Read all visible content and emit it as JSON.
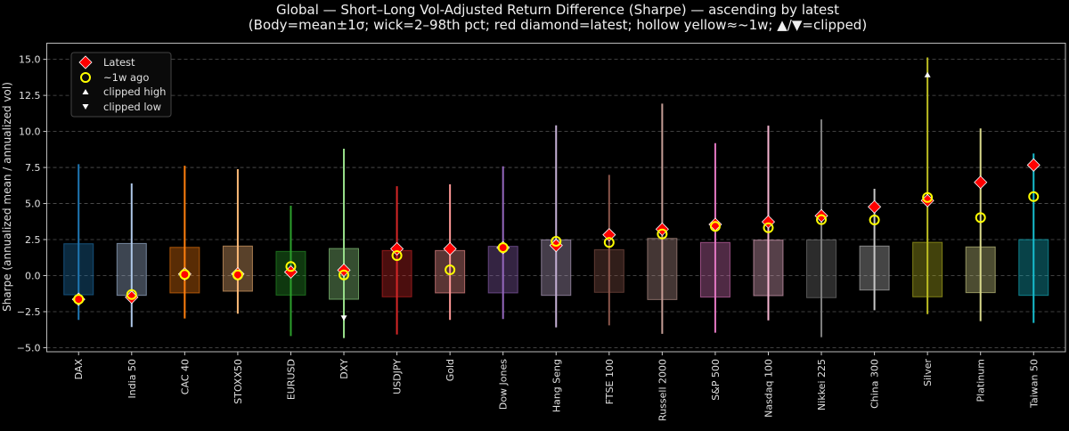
{
  "chart_data": {
    "type": "candlestick-range",
    "title_line1": "Global — Short–Long Vol-Adjusted Return Difference (Sharpe) — ascending by latest",
    "title_line2": "(Body=mean±1σ; wick=2–98th pct; red diamond=latest; hollow yellow≈~1w; ▲/▼=clipped)",
    "xlabel": "",
    "ylabel": "Sharpe (annualized mean / annualized vol)",
    "ylim": [
      -5.28,
      16.12
    ],
    "yticks": [
      -5.0,
      -2.5,
      0.0,
      2.5,
      5.0,
      7.5,
      10.0,
      12.5,
      15.0
    ],
    "ytick_labels": [
      "−5.0",
      "−2.5",
      "0.0",
      "2.5",
      "5.0",
      "7.5",
      "10.0",
      "12.5",
      "15.0"
    ],
    "grid": "horizontal dashed",
    "legend_placement": "top-left",
    "legend": [
      {
        "label": "Latest",
        "marker": "red-diamond"
      },
      {
        "label": "~1w ago",
        "marker": "hollow-yellow-circle"
      },
      {
        "label": "clipped high",
        "marker": "white-triangle-up"
      },
      {
        "label": "clipped low",
        "marker": "white-triangle-down"
      }
    ],
    "categories": [
      "DAX",
      "India 50",
      "CAC 40",
      "STOXX50",
      "EURUSD",
      "DXY",
      "USDJPY",
      "Gold",
      "Dow Jones",
      "Hang Seng",
      "FTSE 100",
      "Russell 2000",
      "S&P 500",
      "Nasdaq 100",
      "Nikkei 225",
      "China 300",
      "Silver",
      "Platinum",
      "Taiwan 50"
    ],
    "colors": [
      "#1f77b4",
      "#aec7e8",
      "#ff7f0e",
      "#ffbb78",
      "#2ca02c",
      "#98df8a",
      "#d62728",
      "#ff9896",
      "#9467bd",
      "#c5b0d5",
      "#8c564b",
      "#c49c94",
      "#e377c2",
      "#f7b6d2",
      "#7f7f7f",
      "#c7c7c7",
      "#bcbd22",
      "#dbdb8d",
      "#17becf"
    ],
    "body_high": [
      2.21,
      2.23,
      1.96,
      2.05,
      1.68,
      1.88,
      1.74,
      1.74,
      2.03,
      2.48,
      1.8,
      2.58,
      2.3,
      2.46,
      2.48,
      2.05,
      2.31,
      1.99,
      2.5
    ],
    "body_low": [
      -1.33,
      -1.37,
      -1.2,
      -1.08,
      -1.35,
      -1.64,
      -1.47,
      -1.2,
      -1.2,
      -1.37,
      -1.16,
      -1.66,
      -1.49,
      -1.39,
      -1.53,
      -1.0,
      -1.47,
      -1.18,
      -1.37
    ],
    "wick_high": [
      7.73,
      6.39,
      7.62,
      7.38,
      4.85,
      8.8,
      6.2,
      6.33,
      7.58,
      10.42,
      6.99,
      11.93,
      9.19,
      10.4,
      10.83,
      6.02,
      15.13,
      10.21,
      8.47
    ],
    "wick_low": [
      -3.07,
      -3.57,
      -2.97,
      -2.64,
      -4.19,
      -4.33,
      -4.08,
      -3.07,
      -3.01,
      -3.59,
      -3.45,
      -4.04,
      -3.96,
      -3.1,
      -4.27,
      -2.4,
      -2.67,
      -3.16,
      -3.28
    ],
    "latest": [
      -1.64,
      -1.5,
      0.11,
      0.12,
      0.25,
      0.38,
      1.86,
      1.86,
      1.94,
      2.09,
      2.83,
      3.22,
      3.55,
      3.73,
      4.15,
      4.77,
      5.2,
      6.47,
      7.67
    ],
    "week_ago": [
      -1.64,
      -1.31,
      0.08,
      0.05,
      0.63,
      0.05,
      1.39,
      0.4,
      1.94,
      2.38,
      2.3,
      2.89,
      3.41,
      3.32,
      3.88,
      3.86,
      5.42,
      4.02,
      5.48
    ],
    "clipped_high": [
      null,
      null,
      null,
      null,
      null,
      null,
      null,
      null,
      null,
      null,
      null,
      null,
      null,
      null,
      null,
      null,
      13.94,
      null,
      null
    ],
    "clipped_low": [
      null,
      null,
      null,
      null,
      null,
      -2.95,
      null,
      null,
      null,
      null,
      null,
      null,
      null,
      null,
      null,
      null,
      null,
      null,
      null
    ]
  }
}
